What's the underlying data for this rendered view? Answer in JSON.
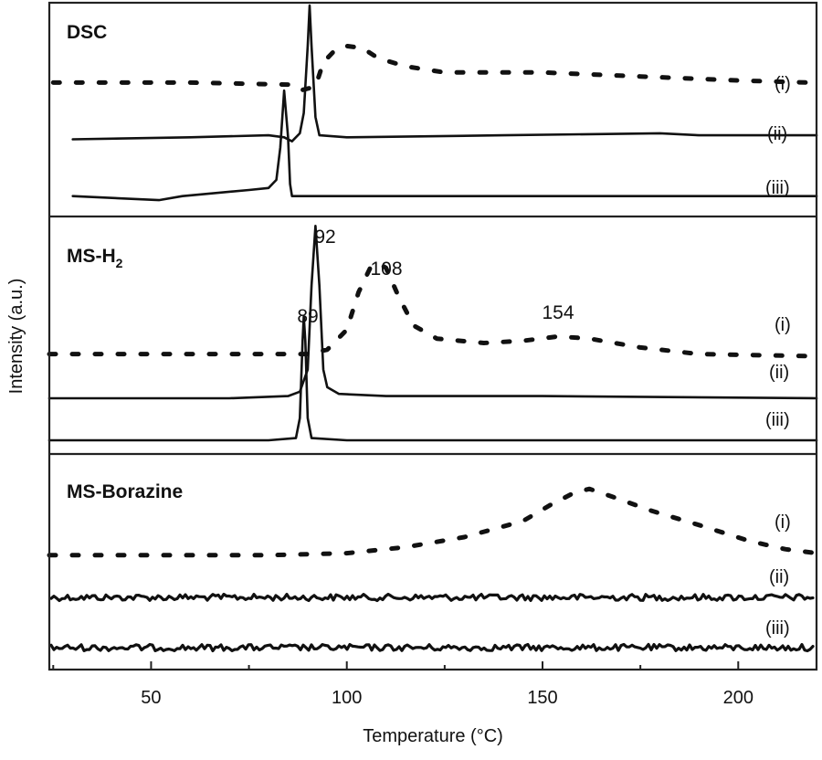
{
  "chart_data": {
    "type": "line",
    "xlabel": "Temperature (°C)",
    "ylabel": "Intensity (a.u.)",
    "xlim": [
      24,
      220
    ],
    "xticks": [
      50,
      100,
      150,
      200
    ],
    "grid": false,
    "panels": [
      {
        "id": "dsc",
        "title": "DSC",
        "series": [
          {
            "name": "(i)",
            "style": "dotted",
            "points": [
              [
                25,
                0.62
              ],
              [
                60,
                0.62
              ],
              [
                85,
                0.61
              ],
              [
                88,
                0.58
              ],
              [
                92,
                0.6
              ],
              [
                94,
                0.72
              ],
              [
                97,
                0.78
              ],
              [
                100,
                0.8
              ],
              [
                104,
                0.79
              ],
              [
                108,
                0.74
              ],
              [
                115,
                0.7
              ],
              [
                125,
                0.67
              ],
              [
                150,
                0.67
              ],
              [
                175,
                0.65
              ],
              [
                200,
                0.63
              ],
              [
                218,
                0.62
              ]
            ]
          },
          {
            "name": "(ii)",
            "style": "solid",
            "points": [
              [
                30,
                0.34
              ],
              [
                60,
                0.35
              ],
              [
                80,
                0.36
              ],
              [
                84,
                0.35
              ],
              [
                86,
                0.33
              ],
              [
                88,
                0.37
              ],
              [
                89,
                0.47
              ],
              [
                90,
                0.8
              ],
              [
                90.5,
                1.0
              ],
              [
                91,
                0.8
              ],
              [
                92,
                0.45
              ],
              [
                93,
                0.36
              ],
              [
                100,
                0.35
              ],
              [
                140,
                0.36
              ],
              [
                180,
                0.37
              ],
              [
                190,
                0.36
              ],
              [
                220,
                0.36
              ]
            ]
          },
          {
            "name": "(iii)",
            "style": "solid",
            "points": [
              [
                30,
                0.06
              ],
              [
                52,
                0.04
              ],
              [
                58,
                0.06
              ],
              [
                75,
                0.09
              ],
              [
                80,
                0.1
              ],
              [
                82,
                0.14
              ],
              [
                83,
                0.3
              ],
              [
                84,
                0.58
              ],
              [
                85,
                0.35
              ],
              [
                85.5,
                0.12
              ],
              [
                86,
                0.06
              ],
              [
                100,
                0.06
              ],
              [
                150,
                0.06
              ],
              [
                220,
                0.06
              ]
            ]
          }
        ],
        "curve_labels": [
          "(i)",
          "(ii)",
          "(iii)"
        ]
      },
      {
        "id": "ms-h2",
        "title": "MS-H2",
        "title_main": "MS-H",
        "title_sub": "2",
        "annotations": [
          "92",
          "108",
          "89",
          "154"
        ],
        "series": [
          {
            "name": "(i)",
            "style": "dotted",
            "points": [
              [
                24,
                0.39
              ],
              [
                60,
                0.39
              ],
              [
                90,
                0.39
              ],
              [
                95,
                0.41
              ],
              [
                100,
                0.5
              ],
              [
                103,
                0.67
              ],
              [
                106,
                0.78
              ],
              [
                108,
                0.8
              ],
              [
                110,
                0.78
              ],
              [
                113,
                0.66
              ],
              [
                117,
                0.52
              ],
              [
                123,
                0.46
              ],
              [
                135,
                0.44
              ],
              [
                145,
                0.45
              ],
              [
                154,
                0.47
              ],
              [
                162,
                0.46
              ],
              [
                175,
                0.42
              ],
              [
                190,
                0.39
              ],
              [
                220,
                0.38
              ]
            ]
          },
          {
            "name": "(ii)",
            "style": "solid",
            "points": [
              [
                24,
                0.19
              ],
              [
                70,
                0.19
              ],
              [
                85,
                0.2
              ],
              [
                88,
                0.22
              ],
              [
                90,
                0.32
              ],
              [
                91,
                0.7
              ],
              [
                92,
                0.97
              ],
              [
                93,
                0.7
              ],
              [
                94,
                0.32
              ],
              [
                95,
                0.24
              ],
              [
                98,
                0.21
              ],
              [
                110,
                0.2
              ],
              [
                150,
                0.2
              ],
              [
                220,
                0.19
              ]
            ]
          },
          {
            "name": "(iii)",
            "style": "solid",
            "points": [
              [
                24,
                0.0
              ],
              [
                80,
                0.0
              ],
              [
                87,
                0.01
              ],
              [
                88,
                0.1
              ],
              [
                88.7,
                0.45
              ],
              [
                89,
                0.56
              ],
              [
                89.4,
                0.45
              ],
              [
                90,
                0.1
              ],
              [
                91,
                0.01
              ],
              [
                100,
                0.0
              ],
              [
                220,
                0.0
              ]
            ]
          }
        ],
        "curve_labels": [
          "(i)",
          "(ii)",
          "(iii)"
        ]
      },
      {
        "id": "ms-borazine",
        "title": "MS-Borazine",
        "series": [
          {
            "name": "(i)",
            "style": "dotted",
            "points": [
              [
                24,
                0.51
              ],
              [
                80,
                0.51
              ],
              [
                100,
                0.52
              ],
              [
                115,
                0.55
              ],
              [
                130,
                0.6
              ],
              [
                145,
                0.68
              ],
              [
                152,
                0.76
              ],
              [
                158,
                0.82
              ],
              [
                162,
                0.84
              ],
              [
                168,
                0.8
              ],
              [
                178,
                0.73
              ],
              [
                190,
                0.66
              ],
              [
                203,
                0.58
              ],
              [
                212,
                0.54
              ],
              [
                220,
                0.52
              ]
            ]
          },
          {
            "name": "(ii)",
            "style": "noisy",
            "level": 0.3
          },
          {
            "name": "(iii)",
            "style": "noisy",
            "level": 0.05
          }
        ],
        "curve_labels": [
          "(i)",
          "(ii)",
          "(iii)"
        ]
      }
    ]
  }
}
